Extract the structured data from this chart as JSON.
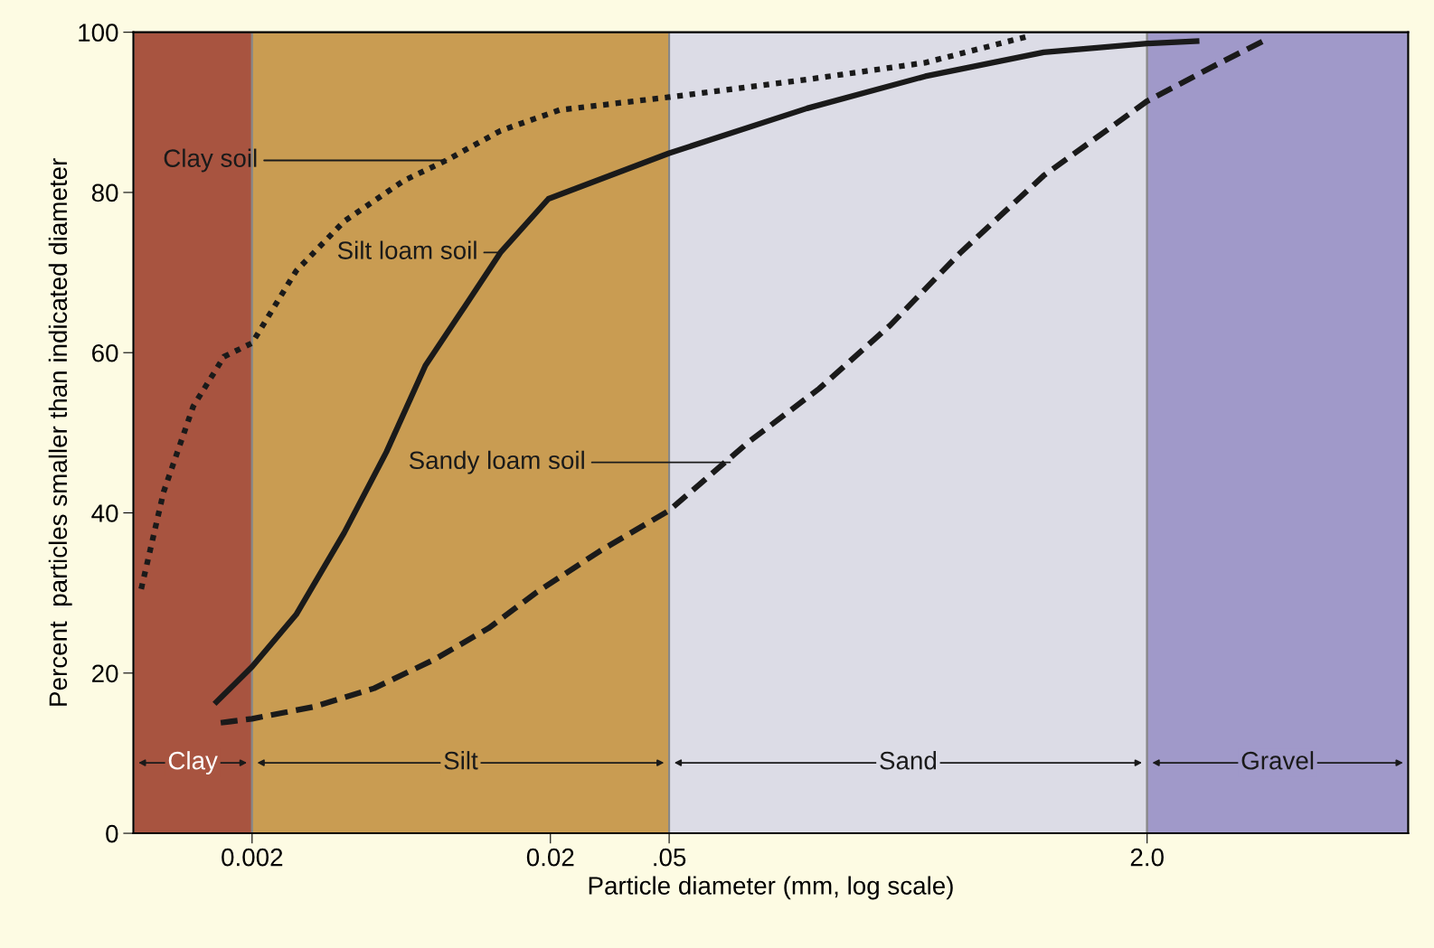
{
  "chart_data": {
    "type": "line",
    "xlabel": "Particle diameter (mm, log scale)",
    "ylabel": "Percent  particles smaller than indicated diameter",
    "log": "x",
    "xlim": [
      0.0008,
      15
    ],
    "ylim": [
      0,
      100
    ],
    "xticks": [
      {
        "value": 0.002,
        "label": "0.002"
      },
      {
        "value": 0.02,
        "label": "0.02"
      },
      {
        "value": 0.05,
        "label": ".05"
      },
      {
        "value": 2,
        "label": "2.0"
      }
    ],
    "yticks": [
      0,
      20,
      40,
      60,
      80,
      100
    ],
    "grid": false,
    "marker": "none",
    "series": [
      {
        "color": "#1a1a1a",
        "line_style": "dotted",
        "x": [
          0.00085,
          0.00101,
          0.00127,
          0.00161,
          0.002,
          0.00281,
          0.00407,
          0.00647,
          0.00895,
          0.0136,
          0.0215,
          0.05,
          0.145,
          0.361,
          0.8
        ],
        "values": [
          30.5,
          42.6,
          53.3,
          59.5,
          61.2,
          70.2,
          76.4,
          81.5,
          84.0,
          87.7,
          90.3,
          91.9,
          94.1,
          96.2,
          99.5
        ]
      },
      {
        "color": "#1a1a1a",
        "line_style": "solid",
        "x": [
          0.00152,
          0.002,
          0.00281,
          0.00407,
          0.00564,
          0.00762,
          0.0103,
          0.0136,
          0.0197,
          0.05,
          0.145,
          0.361,
          0.9,
          2.0,
          2.93
        ],
        "values": [
          16.4,
          20.8,
          27.3,
          37.5,
          47.6,
          58.4,
          65.7,
          72.5,
          79.2,
          84.9,
          90.5,
          94.5,
          97.5,
          98.6,
          98.9
        ]
      },
      {
        "color": "#1a1a1a",
        "line_style": "dashed",
        "x": [
          0.00157,
          0.002,
          0.00323,
          0.00513,
          0.00817,
          0.0124,
          0.018,
          0.0292,
          0.05,
          0.092,
          0.159,
          0.275,
          0.474,
          0.9,
          2.0,
          3.52,
          5.15
        ],
        "values": [
          13.8,
          14.3,
          15.8,
          18.1,
          21.7,
          25.6,
          30.1,
          35.2,
          40.3,
          48.8,
          55.5,
          63.4,
          72.5,
          82.1,
          91.4,
          96.2,
          99.3
        ]
      }
    ],
    "bands": [
      {
        "axis": "x",
        "from": 0.0008,
        "to": 0.002,
        "label": "Clay",
        "color": "#a85440"
      },
      {
        "axis": "x",
        "from": 0.002,
        "to": 0.05,
        "label": "Silt",
        "color": "#c99c52"
      },
      {
        "axis": "x",
        "from": 0.05,
        "to": 2,
        "label": "Sand",
        "color": "#dcdce6"
      },
      {
        "axis": "x",
        "from": 2,
        "to": 15,
        "label": "Gravel",
        "color": "#a099c9"
      }
    ],
    "annotations": [
      {
        "text": "Clay soil",
        "x": 0.00895,
        "y": 84.0
      },
      {
        "text": "Silt loam soil",
        "x": 0.0136,
        "y": 72.5
      },
      {
        "text": "Sandy loam soil",
        "x": 0.08,
        "y": 46.3
      }
    ]
  }
}
